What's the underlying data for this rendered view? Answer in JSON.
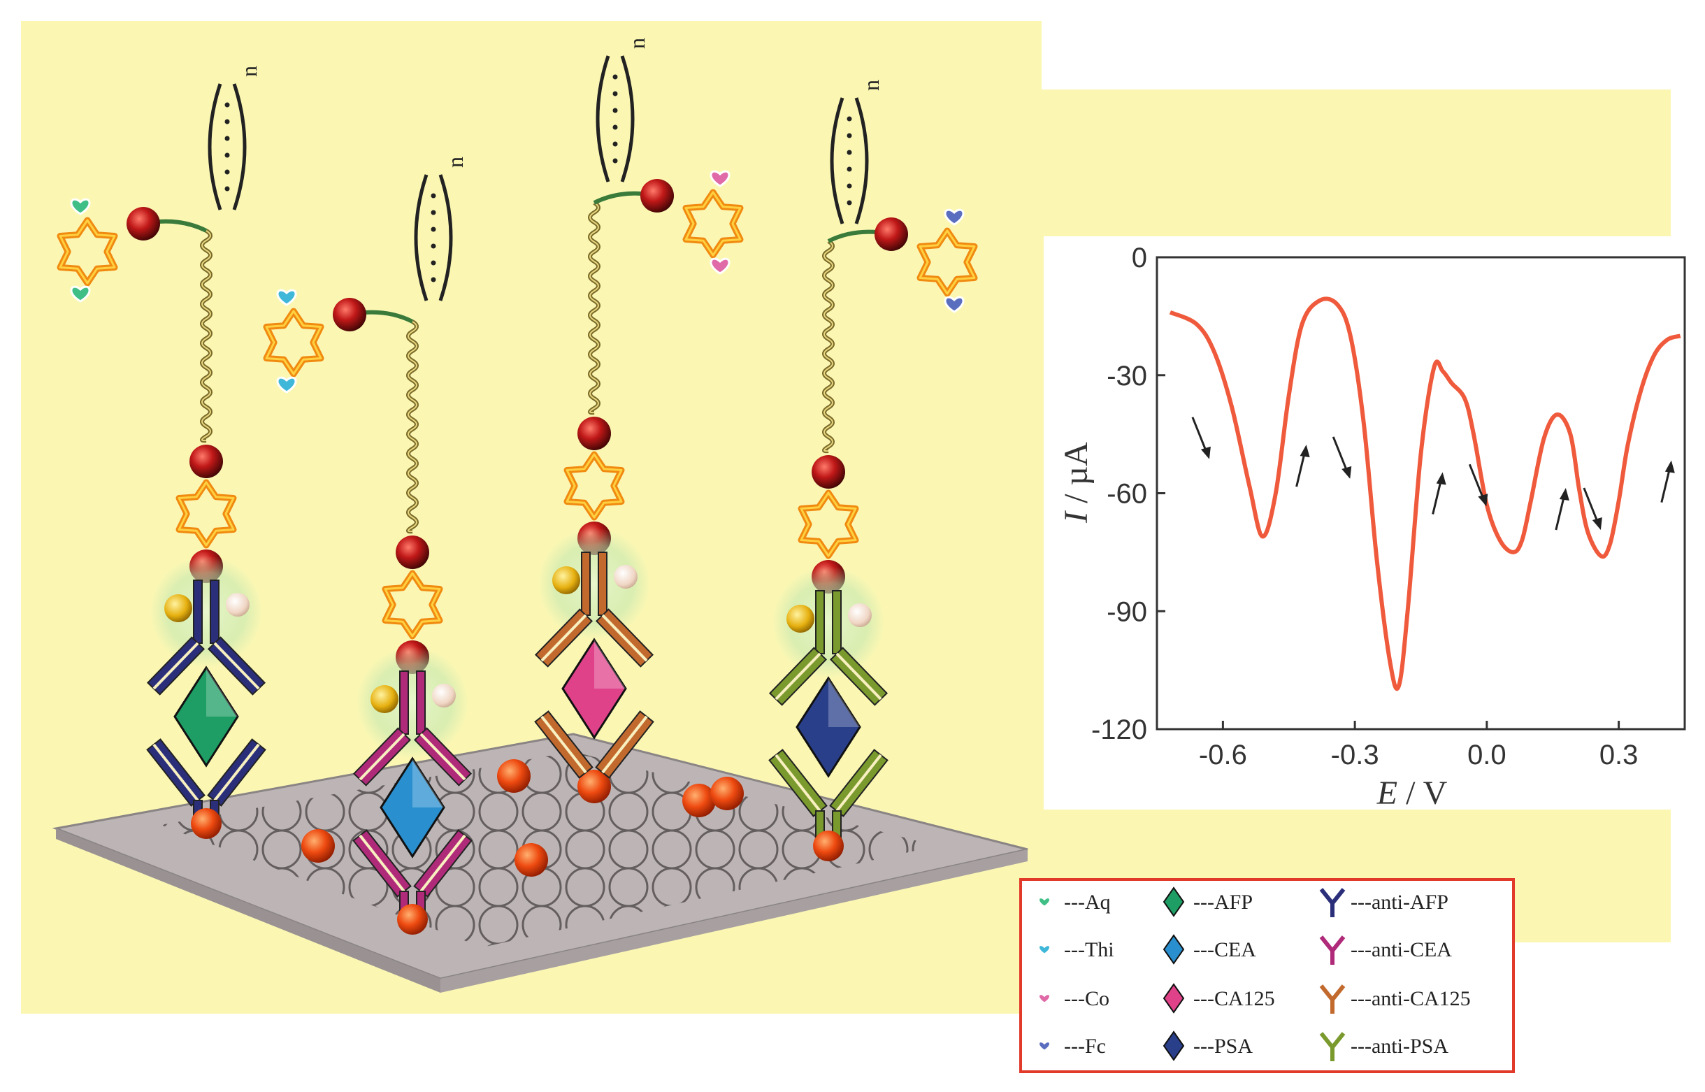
{
  "colors": {
    "background_panel": "#fbf7b3",
    "curve": "#f05a3c",
    "legend_border": "#e23a2a",
    "electrode": "#b8b0b0"
  },
  "polymer": {
    "subscript": "n"
  },
  "legend": {
    "items": [
      {
        "glyph": "heart",
        "color": "#3fbf86",
        "label": "---Aq"
      },
      {
        "glyph": "diamond",
        "color": "#1e9e64",
        "label": "---AFP"
      },
      {
        "glyph": "antibody",
        "color": "#2b2f7a",
        "label": "---anti-AFP"
      },
      {
        "glyph": "heart",
        "color": "#3fb7d8",
        "label": "---Thi"
      },
      {
        "glyph": "diamond",
        "color": "#2a8fcf",
        "label": "---CEA"
      },
      {
        "glyph": "antibody",
        "color": "#b02a7a",
        "label": "---anti-CEA"
      },
      {
        "glyph": "heart",
        "color": "#e06aa8",
        "label": "---Co"
      },
      {
        "glyph": "diamond",
        "color": "#e0428a",
        "label": "---CA125"
      },
      {
        "glyph": "antibody",
        "color": "#c26a2e",
        "label": "---anti-CA125"
      },
      {
        "glyph": "heart",
        "color": "#5a6ec0",
        "label": "---Fc"
      },
      {
        "glyph": "diamond",
        "color": "#2a3f8a",
        "label": "---PSA"
      },
      {
        "glyph": "antibody",
        "color": "#7a9a2e",
        "label": "---anti-PSA"
      }
    ]
  },
  "chart_data": {
    "type": "line",
    "xlabel_var": "E",
    "xlabel_unit": " / V",
    "ylabel_var": "I",
    "ylabel_unit": " / µA",
    "xlim": [
      -0.75,
      0.45
    ],
    "ylim": [
      -120,
      0
    ],
    "xticks": [
      -0.6,
      -0.3,
      0.0,
      0.3
    ],
    "xtick_labels": [
      "-0.6",
      "-0.3",
      "0.0",
      "0.3"
    ],
    "yticks": [
      0,
      -30,
      -60,
      -90,
      -120
    ],
    "ytick_labels": [
      "0",
      "-30",
      "-60",
      "-90",
      "-120"
    ],
    "series": [
      {
        "x": [
          -0.72,
          -0.66,
          -0.62,
          -0.58,
          -0.54,
          -0.51,
          -0.48,
          -0.45,
          -0.42,
          -0.38,
          -0.34,
          -0.31,
          -0.28,
          -0.25,
          -0.22,
          -0.2,
          -0.18,
          -0.15,
          -0.12,
          -0.1,
          -0.08,
          -0.05,
          -0.03,
          0.0,
          0.03,
          0.06,
          0.08,
          0.1,
          0.13,
          0.16,
          0.19,
          0.21,
          0.23,
          0.26,
          0.28,
          0.3,
          0.32,
          0.35,
          0.38,
          0.41,
          0.44
        ],
        "y": [
          -14,
          -17,
          -24,
          -38,
          -58,
          -71,
          -60,
          -35,
          -17,
          -11,
          -12,
          -20,
          -42,
          -77,
          -103,
          -109,
          -90,
          -50,
          -28,
          -29,
          -32,
          -36,
          -45,
          -63,
          -72,
          -75,
          -72,
          -62,
          -46,
          -40,
          -45,
          -59,
          -70,
          -76,
          -73,
          -62,
          -48,
          -34,
          -25,
          -21,
          -20
        ]
      }
    ],
    "arrows": [
      {
        "x": -0.65,
        "y": -46,
        "dir": "down"
      },
      {
        "x": -0.42,
        "y": -53,
        "dir": "up"
      },
      {
        "x": -0.33,
        "y": -51,
        "dir": "down"
      },
      {
        "x": -0.11,
        "y": -60,
        "dir": "up"
      },
      {
        "x": -0.02,
        "y": -58,
        "dir": "down"
      },
      {
        "x": 0.17,
        "y": -64,
        "dir": "up"
      },
      {
        "x": 0.24,
        "y": -64,
        "dir": "down"
      },
      {
        "x": 0.41,
        "y": -57,
        "dir": "up"
      }
    ]
  }
}
